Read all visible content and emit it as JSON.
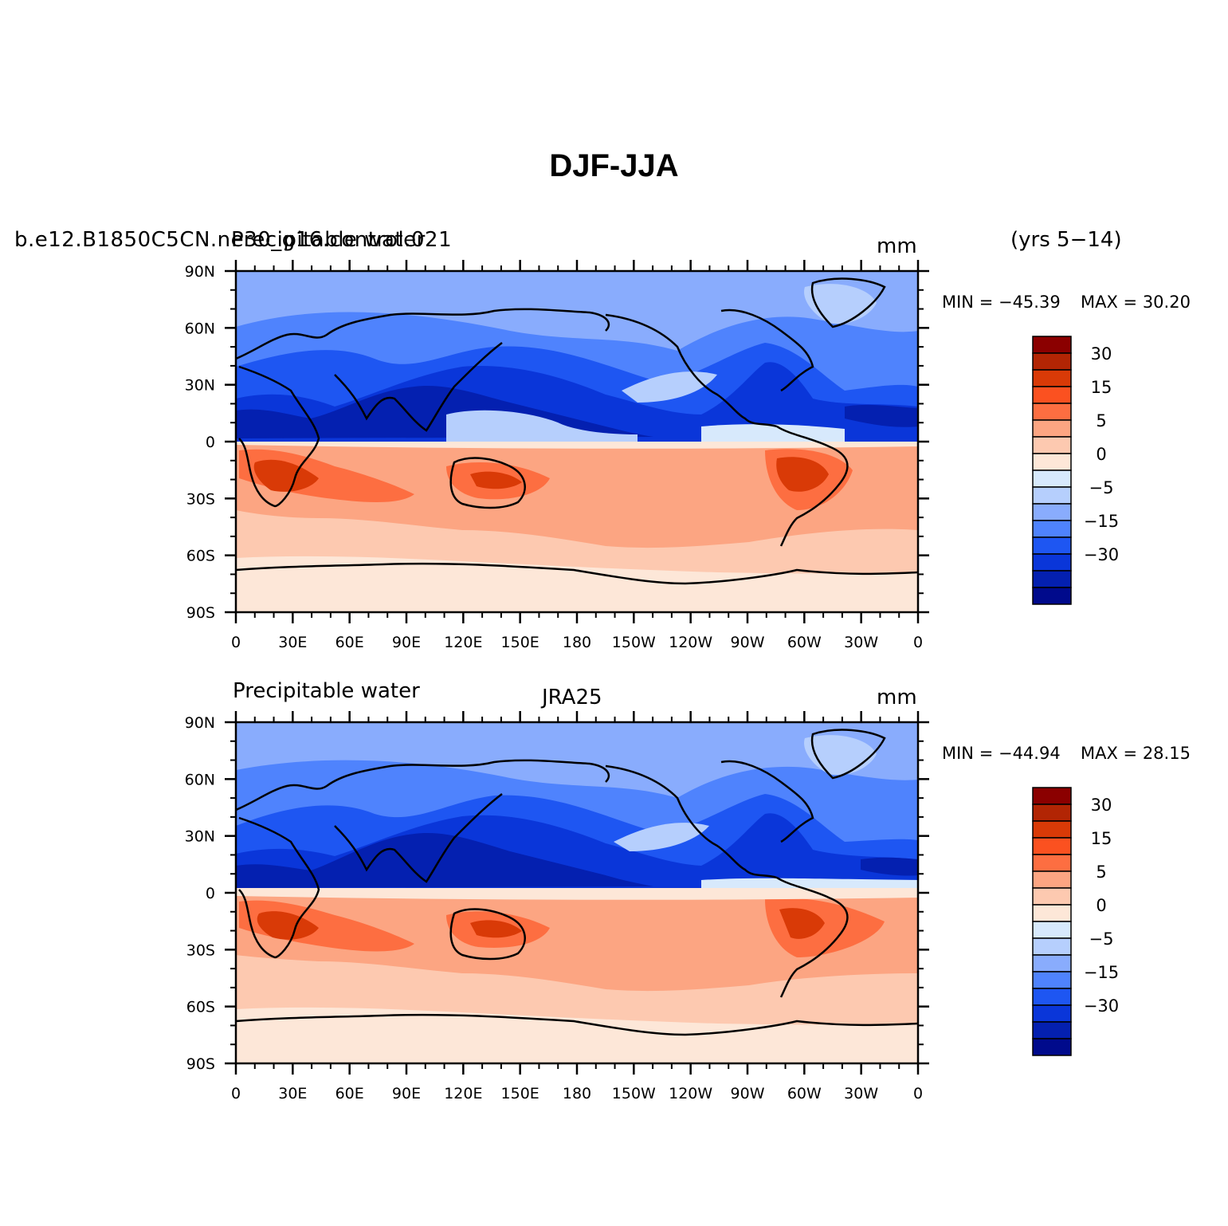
{
  "title": "DJF-JJA",
  "panels": [
    {
      "left_label": "b.e12.B1850C5CN.ne30_g16.control.021",
      "left_label_overlay": "Precipitable water",
      "center_label": "",
      "right_label": "mm",
      "years": "(yrs 5−14)",
      "min_text": "MIN = −45.39",
      "max_text": "MAX =  30.20"
    },
    {
      "left_label": "Precipitable water",
      "left_label_overlay": "",
      "center_label": "JRA25",
      "right_label": "mm",
      "years": "",
      "min_text": "MIN = −44.94",
      "max_text": "MAX =  28.15"
    }
  ],
  "map": {
    "lat_ticks": [
      "90N",
      "60N",
      "30N",
      "0",
      "30S",
      "60S",
      "90S"
    ],
    "lon_ticks": [
      "0",
      "30E",
      "60E",
      "90E",
      "120E",
      "150E",
      "180",
      "150W",
      "120W",
      "90W",
      "60W",
      "30W",
      "0"
    ],
    "lat_range": [
      -90,
      90
    ],
    "lon_range": [
      0,
      360
    ],
    "projection": "cylindrical-equidistant"
  },
  "colorbar": {
    "colors": [
      "#8b0000",
      "#b22504",
      "#d93a07",
      "#fb5120",
      "#fd6e41",
      "#fca582",
      "#fdc9b0",
      "#fde7d8",
      "#d7e9fc",
      "#b6cffd",
      "#89acfd",
      "#4f83fd",
      "#1e56f2",
      "#0a36d9",
      "#0420b0",
      "#000a8c"
    ],
    "tick_labels": [
      "30",
      "15",
      "5",
      "0",
      "−5",
      "−15",
      "−30"
    ]
  }
}
